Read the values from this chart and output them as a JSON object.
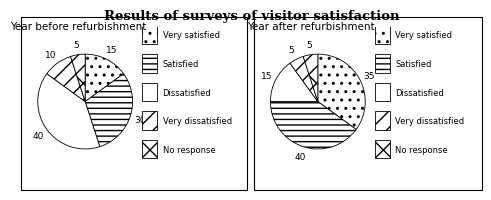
{
  "title": "Results of surveys of visitor satisfaction",
  "left_title": "Year before refurbishment",
  "right_title": "Year after refurbishment",
  "left_values": [
    15,
    30,
    40,
    10,
    5
  ],
  "right_values": [
    35,
    40,
    15,
    5,
    5
  ],
  "labels": [
    "Very satisfied",
    "Satisfied",
    "Dissatisfied",
    "Very dissatisfied",
    "No response"
  ],
  "hatch_patterns": [
    "..",
    "===",
    "+++",
    "///",
    "x\\\\"
  ],
  "title_fontsize": 9.5,
  "subtitle_fontsize": 7.5,
  "label_fontsize": 6.5,
  "legend_fontsize": 6.0
}
